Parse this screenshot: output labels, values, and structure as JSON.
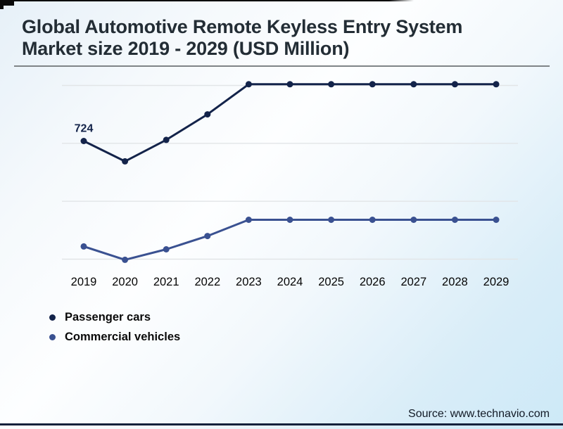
{
  "header": {
    "title_line1": "Global Automotive Remote Keyless Entry System",
    "title_line2": "Market size 2019 - 2029 (USD Million)"
  },
  "footer": {
    "source": "Source: www.technavio.com"
  },
  "colors": {
    "passenger_cars": "#13234a",
    "commercial_vehicles": "#3a5191",
    "gridline": "#e2e5e7",
    "axis_text": "#050505",
    "point_label_text": "#13234a",
    "title_text": "#232d35",
    "title_rule": "#7f8487",
    "bottom_line": "#15213b"
  },
  "chart_data": {
    "type": "line",
    "title": "Global Automotive Remote Keyless Entry System Market size 2019 - 2029 (USD Million)",
    "xlabel": "",
    "ylabel": "USD Million",
    "categories": [
      "2019",
      "2020",
      "2021",
      "2022",
      "2023",
      "2024",
      "2025",
      "2026",
      "2027",
      "2028",
      "2029"
    ],
    "series": [
      {
        "name": "Passenger cars",
        "color": "#13234a",
        "values": [
          724,
          689,
          726,
          770,
          822,
          822,
          822,
          822,
          822,
          822,
          822
        ]
      },
      {
        "name": "Commercial vehicles",
        "color": "#3a5191",
        "values": [
          542,
          519,
          537,
          560,
          588,
          588,
          588,
          588,
          588,
          588,
          588
        ]
      }
    ],
    "point_labels": [
      {
        "series_index": 0,
        "point_index": 0,
        "text": "724"
      }
    ],
    "ylim": [
      500,
      840
    ],
    "gridline_values": [
      520,
      620,
      720,
      820
    ],
    "grid": "horizontal-only",
    "legend_position": "bottom-left",
    "y_axis_visible": false,
    "note": "Only the 2019 Passenger cars value (724) is labeled on the chart; all other values are estimated from gridline spacing."
  }
}
